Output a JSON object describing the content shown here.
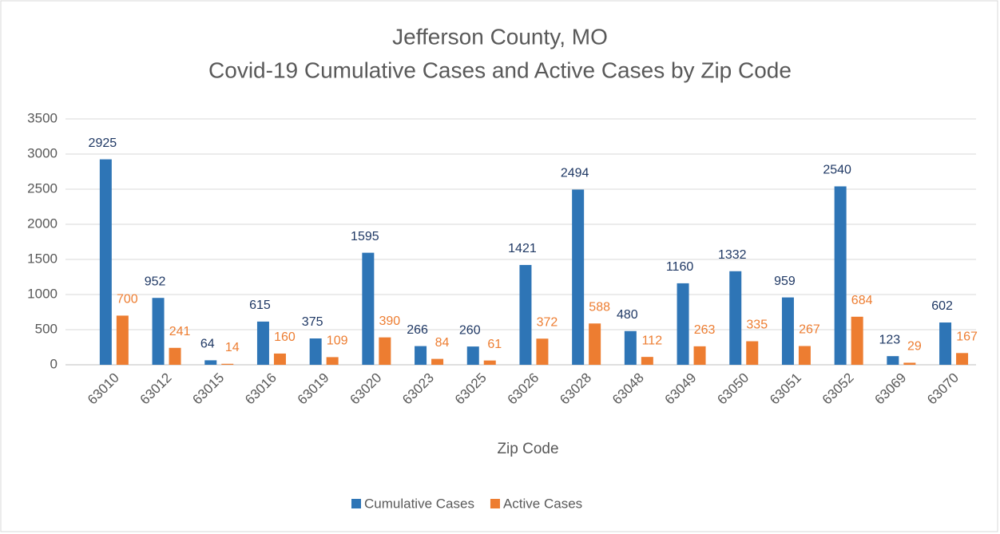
{
  "chart_data": {
    "type": "bar",
    "title": "Jefferson County, MO",
    "subtitle": "Covid-19 Cumulative Cases and Active Cases by Zip Code",
    "x_label": "Zip Code",
    "categories": [
      "63010",
      "63012",
      "63015",
      "63016",
      "63019",
      "63020",
      "63023",
      "63025",
      "63026",
      "63028",
      "63048",
      "63049",
      "63050",
      "63051",
      "63052",
      "63069",
      "63070"
    ],
    "series": [
      {
        "name": "Cumulative Cases",
        "color": "#2e75b6",
        "label_color": "#1f3864",
        "values": [
          2925,
          952,
          64,
          615,
          375,
          1595,
          266,
          260,
          1421,
          2494,
          480,
          1160,
          1332,
          959,
          2540,
          123,
          602
        ]
      },
      {
        "name": "Active Cases",
        "color": "#ed7d31",
        "label_color": "#ed7d31",
        "values": [
          700,
          241,
          14,
          160,
          109,
          390,
          84,
          61,
          372,
          588,
          112,
          263,
          335,
          267,
          684,
          29,
          167
        ]
      }
    ],
    "ylim": [
      0,
      3500
    ],
    "yticks": [
      0,
      500,
      1000,
      1500,
      2000,
      2500,
      3000,
      3500
    ],
    "grid": true,
    "legend": "bottom"
  }
}
